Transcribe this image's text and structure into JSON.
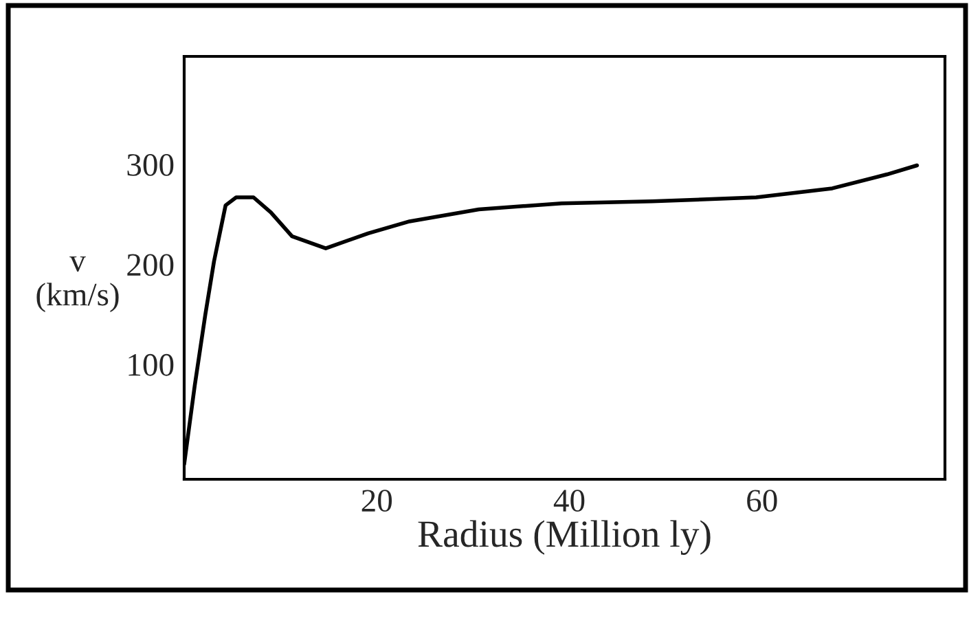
{
  "chart_data": {
    "type": "line",
    "xlabel": "Radius (Million ly)",
    "ylabel": "v\n(km/s)",
    "x": [
      0,
      1.1,
      2.2,
      3.1,
      4.3,
      5.4,
      7.2,
      9,
      11.2,
      14.7,
      19.1,
      23.4,
      30.6,
      39.2,
      48.6,
      59.4,
      67.3,
      73,
      76.1
    ],
    "series": [
      {
        "color": "#000000",
        "values": [
          0,
          79,
          150,
          203,
          259,
          267,
          267,
          252,
          228,
          216,
          231,
          243,
          255,
          261,
          263,
          267,
          276,
          290,
          299
        ]
      }
    ],
    "xlim": [
      0,
      79
    ],
    "ylim": [
      -15,
      408
    ],
    "xticks": [
      20,
      40,
      60
    ],
    "yticks": [
      100,
      200,
      300
    ],
    "grid": false,
    "legend": false,
    "marker": "none",
    "line_style": "solid"
  }
}
